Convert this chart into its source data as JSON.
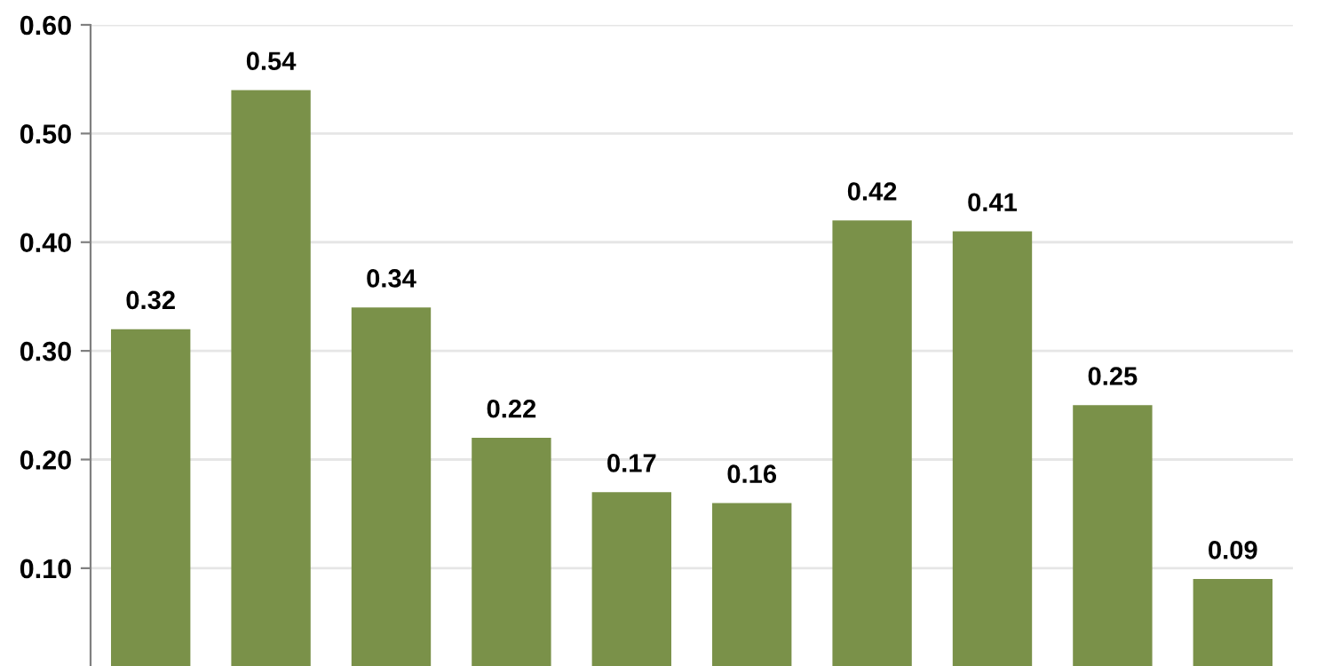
{
  "chart_data": {
    "type": "bar",
    "categories": [
      null,
      null,
      null,
      null,
      null,
      null,
      null,
      null,
      null,
      null
    ],
    "values": [
      0.32,
      0.54,
      0.34,
      0.22,
      0.17,
      0.16,
      0.42,
      0.41,
      0.25,
      0.09
    ],
    "color": "#7a9149",
    "ylim": [
      0.01,
      0.6
    ],
    "yticks": [
      {
        "value": 0.1,
        "label": "0.10"
      },
      {
        "value": 0.2,
        "label": "0.20"
      },
      {
        "value": 0.3,
        "label": "0.30"
      },
      {
        "value": 0.4,
        "label": "0.40"
      },
      {
        "value": 0.5,
        "label": "0.50"
      },
      {
        "value": 0.6,
        "label": "0.60"
      }
    ],
    "grid": "y",
    "data_labels": true,
    "tick_labels": "y"
  }
}
